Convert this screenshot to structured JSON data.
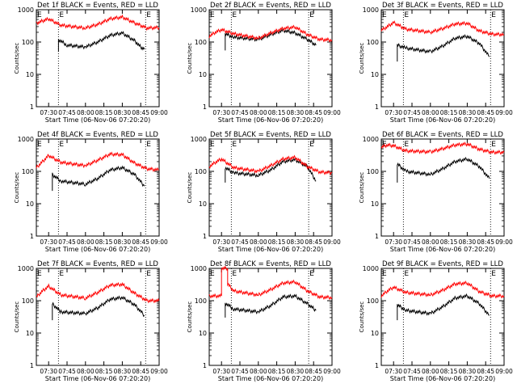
{
  "chart_data": [
    {
      "type": "line",
      "title": "Det 1f BLACK = Events, RED = LLD",
      "xlabel": "Start Time (06-Nov-06 07:20:20)",
      "ylabel": "Counts/sec",
      "yscale": "log",
      "ylim": [
        1,
        1000
      ],
      "xlim": [
        "07:20",
        "09:00"
      ],
      "xticks": [
        "07:30",
        "07:45",
        "08:00",
        "08:15",
        "08:30",
        "08:45",
        "09:00"
      ],
      "yticks": [
        "1",
        "10",
        "100",
        "1000"
      ],
      "vlines": [
        "07:38",
        "08:49"
      ],
      "edge_labels": [
        "E",
        "E"
      ],
      "series": [
        {
          "color": "#000000",
          "x": [
            "07:38",
            "07:38",
            "07:45",
            "08:00",
            "08:10",
            "08:20",
            "08:30",
            "08:40",
            "08:45",
            "08:48"
          ],
          "values": [
            50,
            120,
            80,
            70,
            100,
            160,
            190,
            110,
            70,
            60
          ]
        },
        {
          "color": "#ff0000",
          "x": [
            "07:20",
            "07:25",
            "07:30",
            "07:40",
            "08:00",
            "08:10",
            "08:20",
            "08:30",
            "08:40",
            "08:50",
            "09:00"
          ],
          "values": [
            380,
            450,
            520,
            330,
            270,
            350,
            520,
            590,
            390,
            270,
            280
          ]
        }
      ]
    },
    {
      "type": "line",
      "title": "Det 2f BLACK = Events, RED = LLD",
      "xlabel": "Start Time (06-Nov-06 07:20:20)",
      "ylabel": "Counts/sec",
      "yscale": "log",
      "ylim": [
        1,
        1000
      ],
      "xlim": [
        "07:20",
        "09:00"
      ],
      "xticks": [
        "07:30",
        "07:45",
        "08:00",
        "08:15",
        "08:30",
        "08:45",
        "09:00"
      ],
      "yticks": [
        "1",
        "10",
        "100",
        "1000"
      ],
      "vlines": [
        "07:38",
        "08:41"
      ],
      "edge_labels": [
        "E",
        "E"
      ],
      "series": [
        {
          "color": "#000000",
          "x": [
            "07:33",
            "07:33",
            "07:40",
            "08:00",
            "08:10",
            "08:20",
            "08:30",
            "08:40",
            "08:47"
          ],
          "values": [
            55,
            180,
            140,
            120,
            170,
            230,
            190,
            120,
            80
          ]
        },
        {
          "color": "#ff0000",
          "x": [
            "07:20",
            "07:25",
            "07:30",
            "07:40",
            "08:00",
            "08:10",
            "08:20",
            "08:30",
            "08:40",
            "08:50",
            "09:00"
          ],
          "values": [
            150,
            200,
            240,
            180,
            130,
            190,
            260,
            290,
            170,
            120,
            115
          ]
        }
      ]
    },
    {
      "type": "line",
      "title": "Det 3f BLACK = Events, RED = LLD",
      "xlabel": "Start Time (06-Nov-06 07:20:20)",
      "ylabel": "Counts/sec",
      "yscale": "log",
      "ylim": [
        1,
        1000
      ],
      "xlim": [
        "07:20",
        "09:00"
      ],
      "xticks": [
        "07:30",
        "07:45",
        "08:00",
        "08:15",
        "08:30",
        "08:45",
        "09:00"
      ],
      "yticks": [
        "1",
        "10",
        "100",
        "1000"
      ],
      "vlines": [
        "07:38",
        "08:49"
      ],
      "edge_labels": [
        "E",
        "E"
      ],
      "series": [
        {
          "color": "#000000",
          "x": [
            "07:33",
            "07:33",
            "07:40",
            "08:00",
            "08:10",
            "08:20",
            "08:30",
            "08:40",
            "08:48"
          ],
          "values": [
            25,
            80,
            65,
            50,
            75,
            130,
            150,
            90,
            35
          ]
        },
        {
          "color": "#ff0000",
          "x": [
            "07:20",
            "07:25",
            "07:30",
            "07:40",
            "08:00",
            "08:10",
            "08:20",
            "08:30",
            "08:40",
            "08:50",
            "09:00"
          ],
          "values": [
            230,
            300,
            400,
            250,
            200,
            260,
            360,
            380,
            220,
            175,
            170
          ]
        }
      ]
    },
    {
      "type": "line",
      "title": "Det 4f BLACK = Events, RED = LLD",
      "xlabel": "Start Time (06-Nov-06 07:20:20)",
      "ylabel": "Counts/sec",
      "yscale": "log",
      "ylim": [
        1,
        1000
      ],
      "xlim": [
        "07:20",
        "09:00"
      ],
      "xticks": [
        "07:30",
        "07:45",
        "08:00",
        "08:15",
        "08:30",
        "08:45",
        "09:00"
      ],
      "yticks": [
        "1",
        "10",
        "100",
        "1000"
      ],
      "vlines": [
        "07:38",
        "08:49"
      ],
      "edge_labels": [
        "E",
        "E"
      ],
      "series": [
        {
          "color": "#000000",
          "x": [
            "07:33",
            "07:33",
            "07:40",
            "08:00",
            "08:10",
            "08:20",
            "08:30",
            "08:40",
            "08:48"
          ],
          "values": [
            25,
            80,
            50,
            40,
            60,
            110,
            130,
            80,
            35
          ]
        },
        {
          "color": "#ff0000",
          "x": [
            "07:20",
            "07:25",
            "07:30",
            "07:40",
            "08:00",
            "08:10",
            "08:20",
            "08:30",
            "08:40",
            "08:50",
            "09:00"
          ],
          "values": [
            130,
            200,
            310,
            190,
            150,
            220,
            340,
            330,
            180,
            120,
            110
          ]
        }
      ]
    },
    {
      "type": "line",
      "title": "Det 5f BLACK = Events, RED = LLD",
      "xlabel": "Start Time (06-Nov-06 07:20:20)",
      "ylabel": "Counts/sec",
      "yscale": "log",
      "ylim": [
        1,
        1000
      ],
      "xlim": [
        "07:20",
        "09:00"
      ],
      "xticks": [
        "07:30",
        "07:45",
        "08:00",
        "08:15",
        "08:30",
        "08:45",
        "09:00"
      ],
      "yticks": [
        "1",
        "10",
        "100",
        "1000"
      ],
      "vlines": [
        "07:38",
        "08:41"
      ],
      "edge_labels": [
        "E",
        "E"
      ],
      "series": [
        {
          "color": "#000000",
          "x": [
            "07:33",
            "07:33",
            "07:40",
            "08:00",
            "08:10",
            "08:20",
            "08:30",
            "08:40",
            "08:47"
          ],
          "values": [
            45,
            130,
            90,
            75,
            110,
            200,
            230,
            140,
            50
          ]
        },
        {
          "color": "#ff0000",
          "x": [
            "07:20",
            "07:25",
            "07:30",
            "07:40",
            "08:00",
            "08:10",
            "08:20",
            "08:30",
            "08:40",
            "08:50",
            "09:00"
          ],
          "values": [
            140,
            190,
            240,
            130,
            100,
            150,
            240,
            270,
            140,
            95,
            90
          ]
        }
      ]
    },
    {
      "type": "line",
      "title": "Det 6f BLACK = Events, RED = LLD",
      "xlabel": "Start Time (06-Nov-06 07:20:20)",
      "ylabel": "Counts/sec",
      "yscale": "log",
      "ylim": [
        1,
        1000
      ],
      "xlim": [
        "07:20",
        "09:00"
      ],
      "xticks": [
        "07:30",
        "07:45",
        "08:00",
        "08:15",
        "08:30",
        "08:45",
        "09:00"
      ],
      "yticks": [
        "1",
        "10",
        "100",
        "1000"
      ],
      "vlines": [
        "07:38",
        "08:49"
      ],
      "edge_labels": [
        "E",
        "E"
      ],
      "series": [
        {
          "color": "#000000",
          "x": [
            "07:33",
            "07:33",
            "07:40",
            "08:00",
            "08:10",
            "08:20",
            "08:30",
            "08:40",
            "08:48"
          ],
          "values": [
            45,
            170,
            100,
            80,
            120,
            200,
            240,
            140,
            60
          ]
        },
        {
          "color": "#ff0000",
          "x": [
            "07:20",
            "07:25",
            "07:30",
            "07:40",
            "08:00",
            "08:10",
            "08:20",
            "08:30",
            "08:40",
            "08:50",
            "09:00"
          ],
          "values": [
            560,
            650,
            620,
            430,
            400,
            500,
            650,
            700,
            480,
            390,
            390
          ]
        }
      ]
    },
    {
      "type": "line",
      "title": "Det 7f BLACK = Events, RED = LLD",
      "xlabel": "Start Time (06-Nov-06 07:20:20)",
      "ylabel": "Counts/sec",
      "yscale": "log",
      "ylim": [
        1,
        1000
      ],
      "xlim": [
        "07:20",
        "09:00"
      ],
      "xticks": [
        "07:30",
        "07:45",
        "08:00",
        "08:15",
        "08:30",
        "08:45",
        "09:00"
      ],
      "yticks": [
        "1",
        "10",
        "100",
        "1000"
      ],
      "vlines": [
        "07:38",
        "08:49"
      ],
      "edge_labels": [
        "E",
        "E"
      ],
      "series": [
        {
          "color": "#000000",
          "x": [
            "07:33",
            "07:33",
            "07:40",
            "08:00",
            "08:10",
            "08:20",
            "08:30",
            "08:40",
            "08:48"
          ],
          "values": [
            25,
            80,
            45,
            40,
            60,
            110,
            125,
            75,
            35
          ]
        },
        {
          "color": "#ff0000",
          "x": [
            "07:20",
            "07:25",
            "07:30",
            "07:40",
            "08:00",
            "08:10",
            "08:20",
            "08:30",
            "08:40",
            "08:50",
            "09:00"
          ],
          "values": [
            130,
            200,
            280,
            150,
            120,
            180,
            300,
            320,
            170,
            100,
            100
          ]
        }
      ]
    },
    {
      "type": "line",
      "title": "Det 8f BLACK = Events, RED = LLD",
      "xlabel": "Start Time (06-Nov-06 07:20:20)",
      "ylabel": "Counts/sec",
      "yscale": "log",
      "ylim": [
        1,
        1000
      ],
      "xlim": [
        "07:20",
        "09:00"
      ],
      "xticks": [
        "07:30",
        "07:45",
        "08:00",
        "08:15",
        "08:30",
        "08:45",
        "09:00"
      ],
      "yticks": [
        "1",
        "10",
        "100",
        "1000"
      ],
      "vlines": [
        "07:38",
        "08:41"
      ],
      "edge_labels": [
        "E",
        "E"
      ],
      "series": [
        {
          "color": "#000000",
          "x": [
            "07:33",
            "07:33",
            "07:40",
            "08:00",
            "08:10",
            "08:20",
            "08:30",
            "08:40",
            "08:47"
          ],
          "values": [
            30,
            85,
            55,
            45,
            70,
            130,
            140,
            80,
            50
          ]
        },
        {
          "color": "#ff0000",
          "x": [
            "07:20",
            "07:30",
            "07:30",
            "07:35",
            "07:35",
            "07:40",
            "08:00",
            "08:10",
            "08:20",
            "08:30",
            "08:40",
            "08:50",
            "09:00"
          ],
          "values": [
            140,
            140,
            1000,
            1000,
            330,
            200,
            150,
            220,
            350,
            380,
            200,
            130,
            125
          ]
        }
      ]
    },
    {
      "type": "line",
      "title": "Det 9f BLACK = Events, RED = LLD",
      "xlabel": "Start Time (06-Nov-06 07:20:20)",
      "ylabel": "Counts/sec",
      "yscale": "log",
      "ylim": [
        1,
        1000
      ],
      "xlim": [
        "07:20",
        "09:00"
      ],
      "xticks": [
        "07:30",
        "07:45",
        "08:00",
        "08:15",
        "08:30",
        "08:45",
        "09:00"
      ],
      "yticks": [
        "1",
        "10",
        "100",
        "1000"
      ],
      "vlines": [
        "07:38",
        "08:49"
      ],
      "edge_labels": [
        "E",
        "E"
      ],
      "series": [
        {
          "color": "#000000",
          "x": [
            "07:33",
            "07:33",
            "07:40",
            "08:00",
            "08:10",
            "08:20",
            "08:30",
            "08:40",
            "08:48"
          ],
          "values": [
            25,
            75,
            50,
            40,
            65,
            120,
            140,
            80,
            35
          ]
        },
        {
          "color": "#ff0000",
          "x": [
            "07:20",
            "07:25",
            "07:30",
            "07:40",
            "08:00",
            "08:10",
            "08:20",
            "08:30",
            "08:40",
            "08:50",
            "09:00"
          ],
          "values": [
            140,
            200,
            260,
            180,
            150,
            210,
            330,
            350,
            190,
            140,
            140
          ]
        }
      ]
    }
  ]
}
